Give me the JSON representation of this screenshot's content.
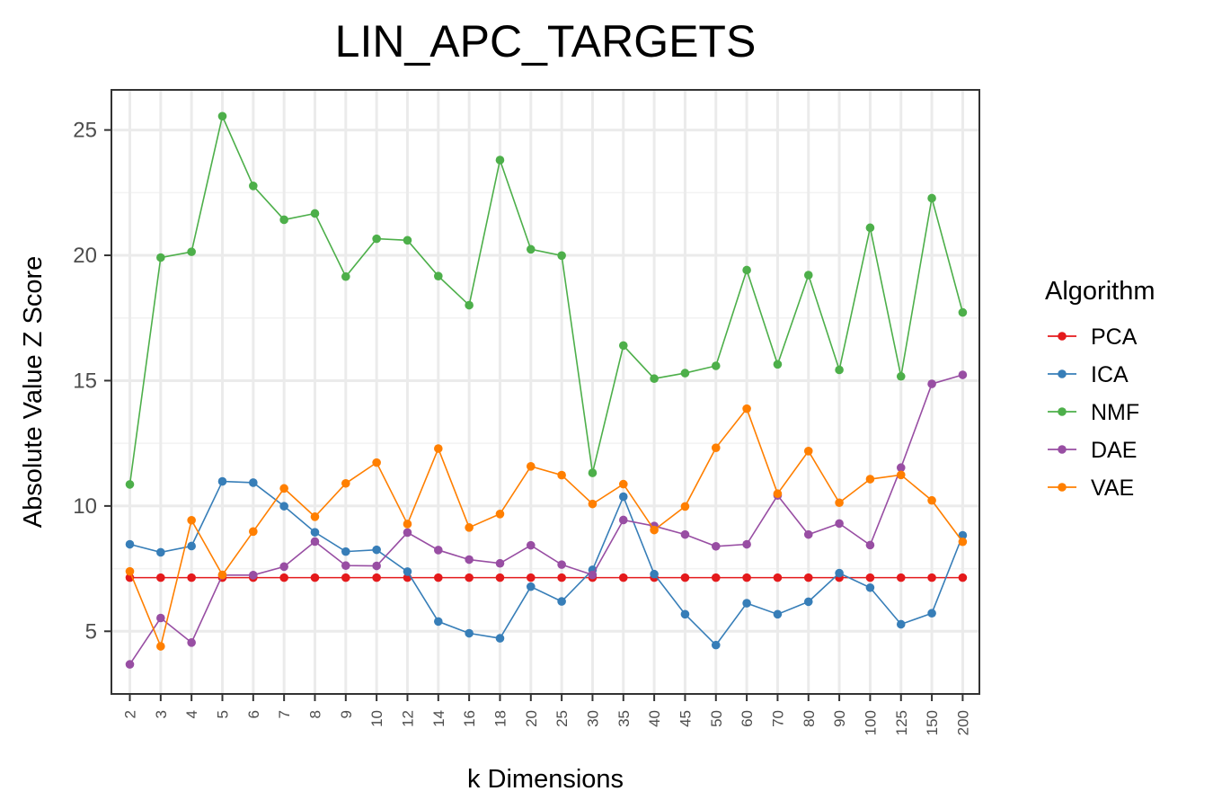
{
  "chart_data": {
    "type": "line",
    "title": "LIN_APC_TARGETS",
    "xlabel": "k Dimensions",
    "ylabel": "Absolute Value Z Score",
    "ylim": [
      2.5,
      26.6
    ],
    "yticks": [
      5,
      10,
      15,
      20,
      25
    ],
    "grid": true,
    "legend": {
      "title": "Algorithm",
      "position": "right"
    },
    "categories": [
      "2",
      "3",
      "4",
      "5",
      "6",
      "7",
      "8",
      "9",
      "10",
      "12",
      "14",
      "16",
      "18",
      "20",
      "25",
      "30",
      "35",
      "40",
      "45",
      "50",
      "60",
      "70",
      "80",
      "90",
      "100",
      "125",
      "150",
      "200"
    ],
    "series": [
      {
        "name": "PCA",
        "color": "#e41a1c",
        "values": [
          7.14,
          7.14,
          7.14,
          7.14,
          7.14,
          7.14,
          7.14,
          7.14,
          7.14,
          7.14,
          7.14,
          7.14,
          7.14,
          7.14,
          7.14,
          7.14,
          7.14,
          7.14,
          7.14,
          7.14,
          7.14,
          7.14,
          7.14,
          7.14,
          7.14,
          7.14,
          7.14,
          7.14
        ]
      },
      {
        "name": "ICA",
        "color": "#377eb8",
        "values": [
          8.47,
          8.15,
          8.4,
          10.98,
          10.93,
          9.99,
          8.95,
          8.18,
          8.25,
          7.38,
          5.39,
          4.92,
          4.72,
          6.78,
          6.19,
          7.45,
          10.37,
          7.28,
          5.68,
          4.45,
          6.12,
          5.68,
          6.18,
          7.32,
          6.74,
          5.28,
          5.72,
          8.83
        ]
      },
      {
        "name": "NMF",
        "color": "#4daf4a",
        "values": [
          10.86,
          19.91,
          20.14,
          25.55,
          22.77,
          21.42,
          21.67,
          19.15,
          20.66,
          20.6,
          19.17,
          18.01,
          23.8,
          20.24,
          19.99,
          11.32,
          16.4,
          15.08,
          15.3,
          15.59,
          19.41,
          15.65,
          19.21,
          15.43,
          21.1,
          15.17,
          22.28,
          17.72
        ]
      },
      {
        "name": "DAE",
        "color": "#984ea3",
        "values": [
          3.68,
          5.53,
          4.55,
          7.24,
          7.24,
          7.58,
          8.58,
          7.62,
          7.61,
          8.94,
          8.24,
          7.86,
          7.71,
          8.43,
          7.66,
          7.25,
          9.44,
          9.2,
          8.86,
          8.39,
          8.47,
          10.42,
          8.86,
          9.3,
          8.44,
          11.53,
          14.87,
          15.23
        ]
      },
      {
        "name": "VAE",
        "color": "#ff7f00",
        "values": [
          7.39,
          4.4,
          9.43,
          7.25,
          8.98,
          10.7,
          9.57,
          10.9,
          11.73,
          9.28,
          12.29,
          9.14,
          9.68,
          11.58,
          11.23,
          10.08,
          10.87,
          9.04,
          9.98,
          12.32,
          13.88,
          10.49,
          12.19,
          10.13,
          11.07,
          11.24,
          10.22,
          8.57
        ]
      }
    ]
  }
}
